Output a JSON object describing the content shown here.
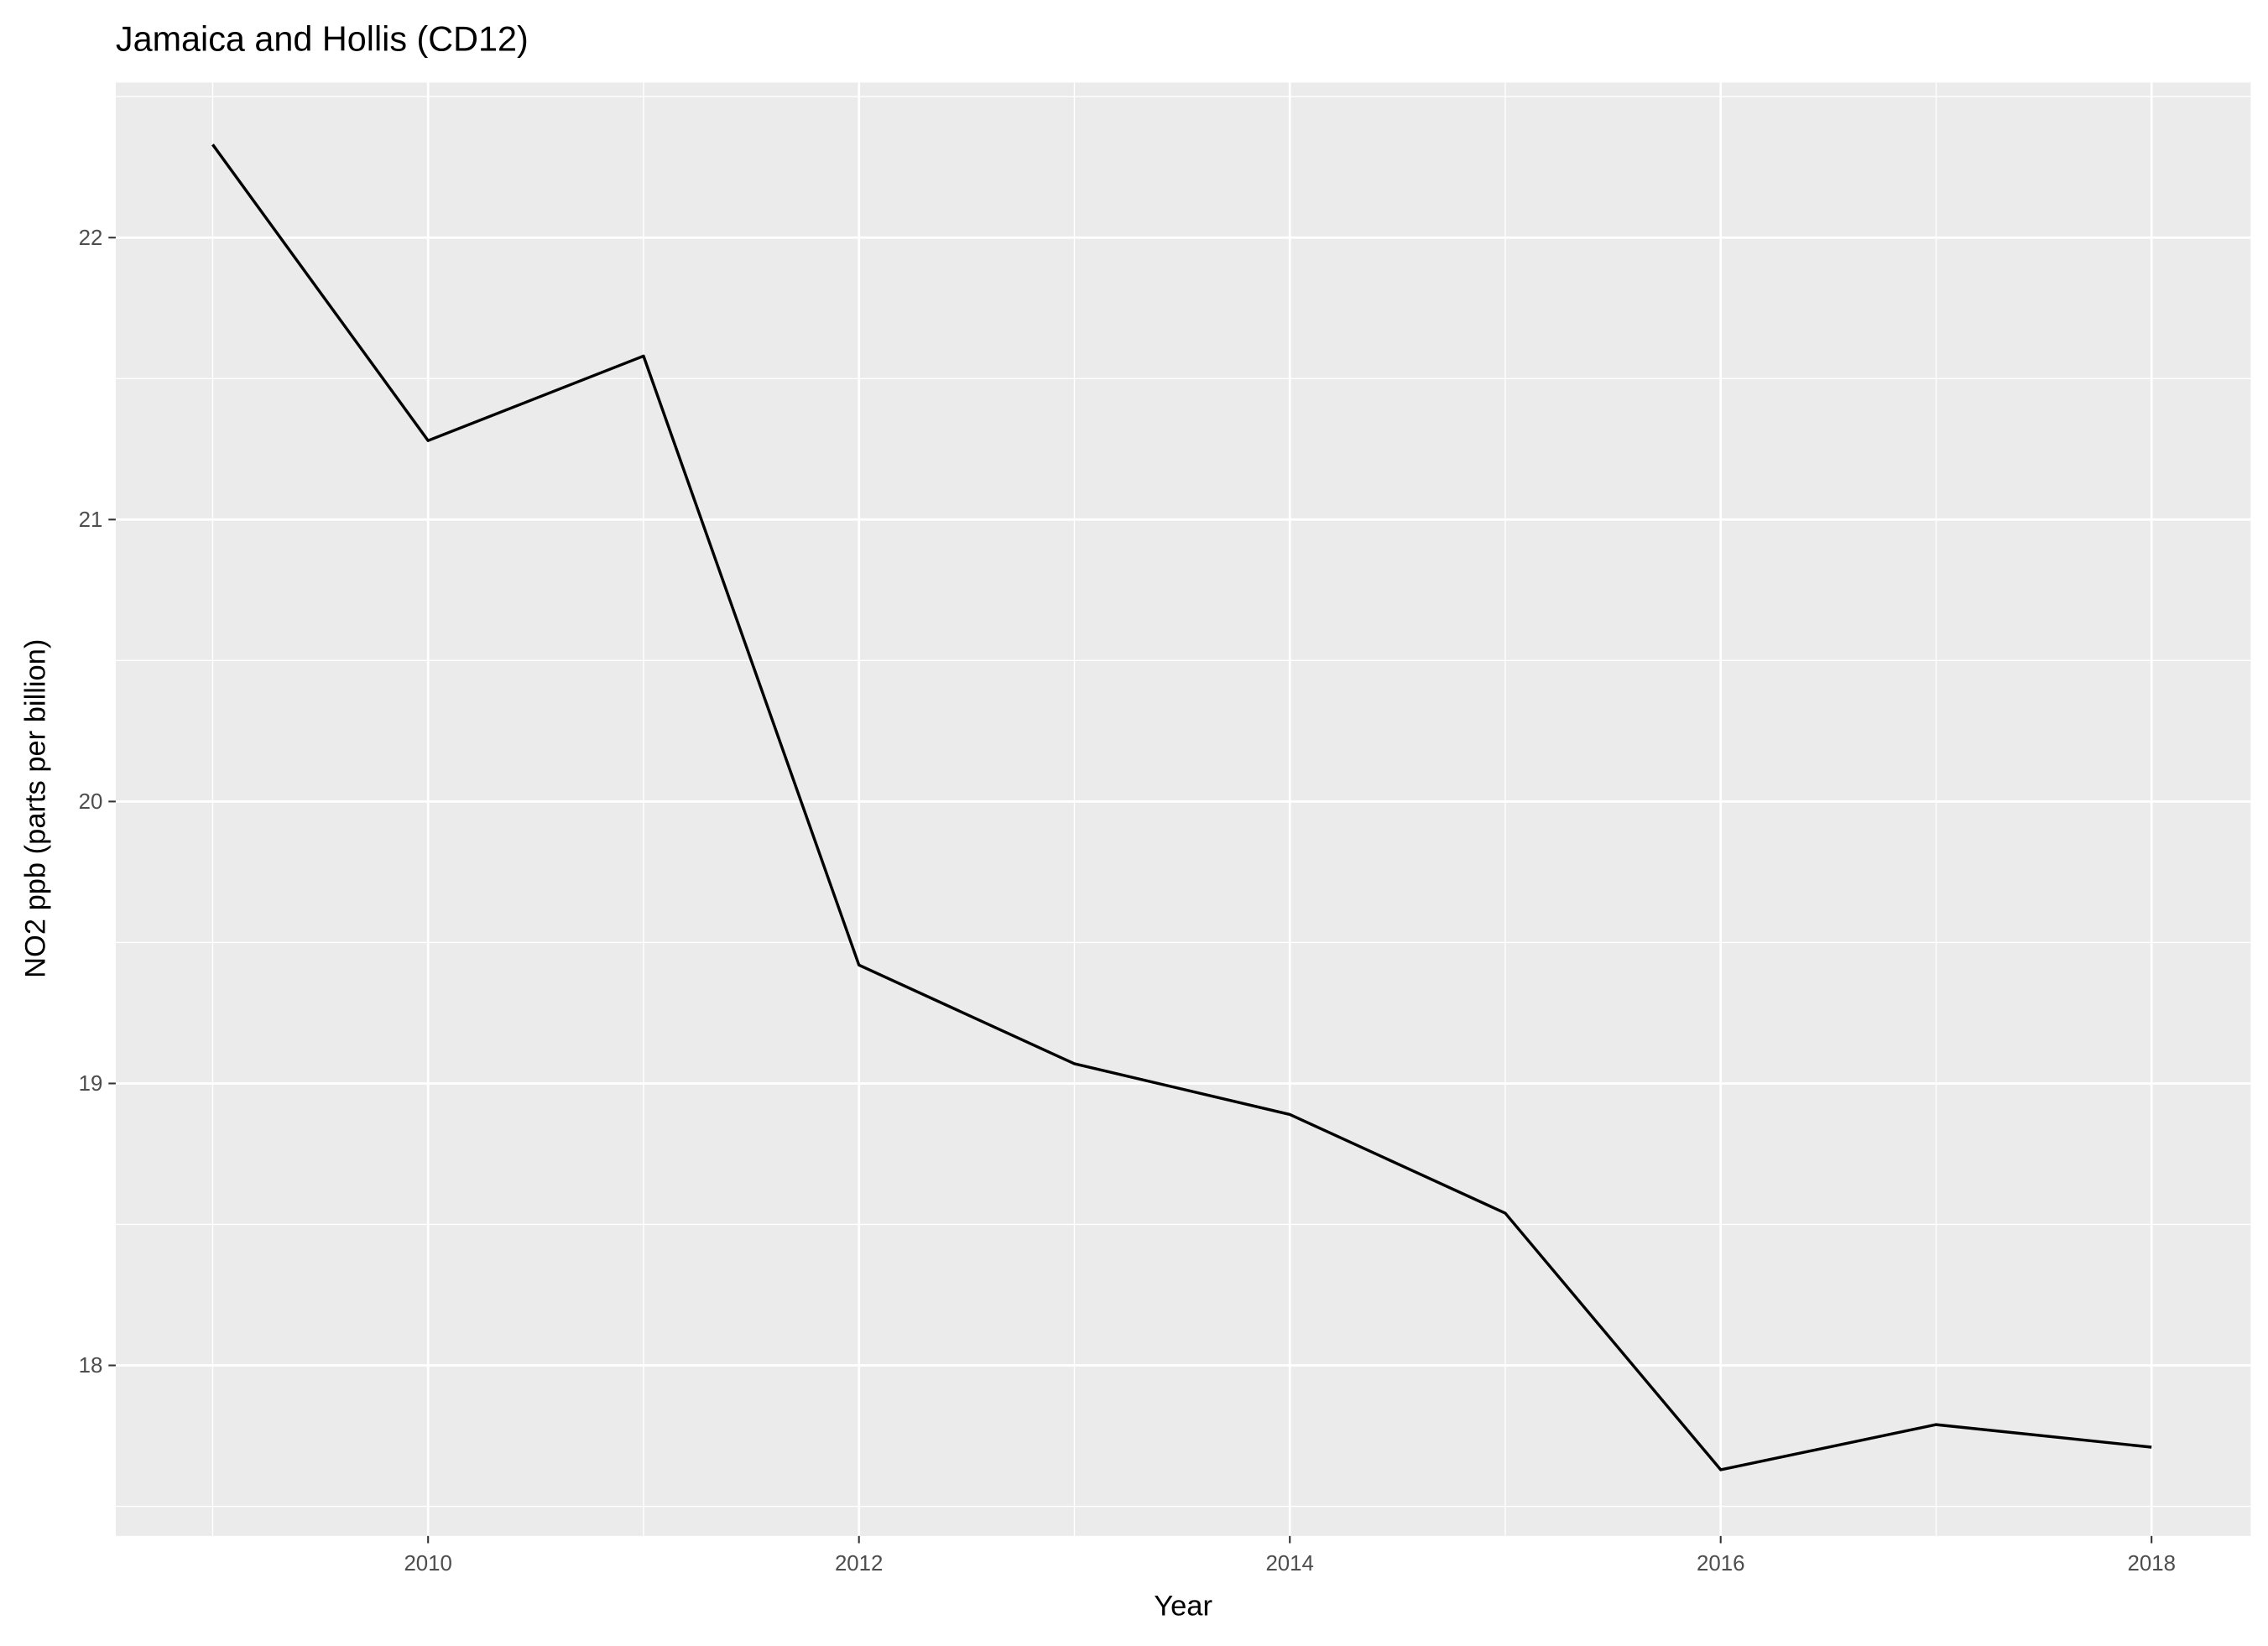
{
  "chart_data": {
    "type": "line",
    "title": "Jamaica and Hollis (CD12)",
    "x_label": "Year",
    "y_label": "NO2 ppb (parts per billion)",
    "x": [
      2009,
      2010,
      2011,
      2012,
      2013,
      2014,
      2015,
      2016,
      2017,
      2018
    ],
    "series": [
      {
        "name": "NO2",
        "color": "#000000",
        "values": [
          22.33,
          21.28,
          21.58,
          19.42,
          19.07,
          18.89,
          18.54,
          17.63,
          17.79,
          17.71
        ]
      }
    ],
    "xlim": [
      2008.55,
      2018.46
    ],
    "ylim": [
      17.395,
      22.55
    ],
    "xticks": [
      2010,
      2012,
      2014,
      2016,
      2018
    ],
    "yticks": [
      18,
      19,
      20,
      21,
      22
    ],
    "grid": true
  }
}
